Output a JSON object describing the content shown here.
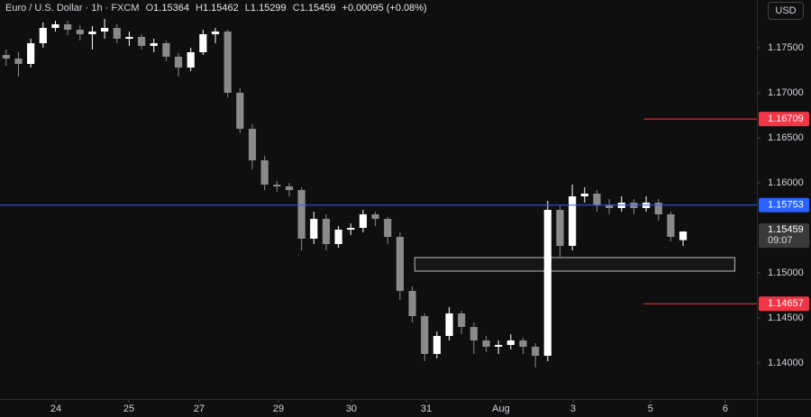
{
  "header": {
    "symbol": "Euro / U.S. Dollar · 1h · FXCM",
    "o_label": "O",
    "o": "1.15364",
    "h_label": "H",
    "h": "1.15462",
    "l_label": "L",
    "l": "1.15299",
    "c_label": "C",
    "c": "1.15459",
    "change": "+0.00095 (+0.08%)",
    "currency": "USD"
  },
  "chart_data": {
    "type": "candlestick",
    "open": [
      1.1742,
      1.1738,
      1.1732,
      1.1755,
      1.1772,
      1.1776,
      1.177,
      1.1765,
      1.1768,
      1.1772,
      1.176,
      1.1762,
      1.1752,
      1.1755,
      1.174,
      1.1728,
      1.1745,
      1.1765,
      1.1768,
      1.17,
      1.166,
      1.1625,
      1.1598,
      1.1596,
      1.1592,
      1.1538,
      1.156,
      1.1532,
      1.1548,
      1.155,
      1.1565,
      1.156,
      1.154,
      1.148,
      1.1452,
      1.141,
      1.143,
      1.1455,
      1.144,
      1.1425,
      1.1418,
      1.142,
      1.1425,
      1.1418,
      1.1408,
      1.157,
      1.153,
      1.1585,
      1.1588,
      1.1575,
      1.1572,
      1.1578,
      1.1572,
      1.1578,
      1.1565,
      1.15364
    ],
    "high": [
      1.1748,
      1.1745,
      1.176,
      1.1778,
      1.178,
      1.178,
      1.1775,
      1.1774,
      1.1782,
      1.1776,
      1.1768,
      1.1765,
      1.176,
      1.1758,
      1.1744,
      1.175,
      1.177,
      1.1772,
      1.177,
      1.1705,
      1.1665,
      1.163,
      1.1602,
      1.16,
      1.1595,
      1.1568,
      1.1565,
      1.1552,
      1.1555,
      1.157,
      1.1568,
      1.1562,
      1.1545,
      1.1485,
      1.1455,
      1.1435,
      1.1462,
      1.1458,
      1.1445,
      1.143,
      1.1425,
      1.1432,
      1.1428,
      1.1422,
      1.158,
      1.1575,
      1.1598,
      1.1595,
      1.1592,
      1.1582,
      1.1585,
      1.1582,
      1.1585,
      1.1582,
      1.1568,
      1.15462
    ],
    "low": [
      1.173,
      1.1718,
      1.1728,
      1.175,
      1.1768,
      1.1764,
      1.1758,
      1.1748,
      1.176,
      1.1755,
      1.1752,
      1.1748,
      1.1745,
      1.1735,
      1.1718,
      1.1724,
      1.1742,
      1.1755,
      1.1695,
      1.1655,
      1.1615,
      1.1592,
      1.159,
      1.1585,
      1.1525,
      1.1532,
      1.1525,
      1.1528,
      1.1542,
      1.1545,
      1.1552,
      1.1532,
      1.147,
      1.1445,
      1.1402,
      1.1405,
      1.1425,
      1.1432,
      1.141,
      1.1412,
      1.141,
      1.1415,
      1.141,
      1.1395,
      1.1402,
      1.1518,
      1.1525,
      1.1578,
      1.1568,
      1.1565,
      1.1568,
      1.1565,
      1.1568,
      1.1558,
      1.1535,
      1.15299
    ],
    "close": [
      1.1738,
      1.1732,
      1.1755,
      1.1772,
      1.1776,
      1.177,
      1.1765,
      1.1768,
      1.1772,
      1.176,
      1.1762,
      1.1752,
      1.1755,
      1.174,
      1.1728,
      1.1745,
      1.1765,
      1.1768,
      1.17,
      1.166,
      1.1625,
      1.1598,
      1.1596,
      1.1592,
      1.1538,
      1.156,
      1.1532,
      1.1548,
      1.155,
      1.1565,
      1.156,
      1.154,
      1.148,
      1.1452,
      1.141,
      1.143,
      1.1455,
      1.144,
      1.1425,
      1.1418,
      1.142,
      1.1425,
      1.1418,
      1.1408,
      1.157,
      1.153,
      1.1585,
      1.1588,
      1.1575,
      1.1572,
      1.1578,
      1.1572,
      1.1578,
      1.1565,
      1.154,
      1.15459
    ],
    "up_color": "#ffffff",
    "down_color": "#8a8a8a",
    "xlim": [
      -0.5,
      61
    ],
    "xticks": [
      {
        "value": 4.04,
        "label": "24"
      },
      {
        "value": 9.97,
        "label": "25"
      },
      {
        "value": 15.68,
        "label": "27"
      },
      {
        "value": 22.12,
        "label": "29"
      },
      {
        "value": 28.05,
        "label": "30"
      },
      {
        "value": 34.13,
        "label": "31"
      },
      {
        "value": 40.2,
        "label": "Aug"
      },
      {
        "value": 46.06,
        "label": "3"
      },
      {
        "value": 52.35,
        "label": "5"
      },
      {
        "value": 58.43,
        "label": "6"
      }
    ],
    "ylim": [
      1.136,
      1.1803
    ],
    "yticks": [
      {
        "value": 1.175,
        "label": "1.17500"
      },
      {
        "value": 1.17,
        "label": "1.17000"
      },
      {
        "value": 1.165,
        "label": "1.16500"
      },
      {
        "value": 1.16,
        "label": "1.16000"
      },
      {
        "value": 1.15,
        "label": "1.15000"
      },
      {
        "value": 1.145,
        "label": "1.14500"
      },
      {
        "value": 1.14,
        "label": "1.14000"
      }
    ],
    "levels": [
      {
        "value": 1.16709,
        "color": "#f23645",
        "x_start": 51.8
      },
      {
        "value": 1.15753,
        "color": "#2962ff"
      },
      {
        "value": 1.14657,
        "color": "#f23645",
        "x_start": 51.8
      }
    ],
    "zones": [
      {
        "x": [
          33.2,
          59.2
        ],
        "y": [
          1.1502,
          1.1517
        ]
      }
    ],
    "countdown": "09:07"
  }
}
